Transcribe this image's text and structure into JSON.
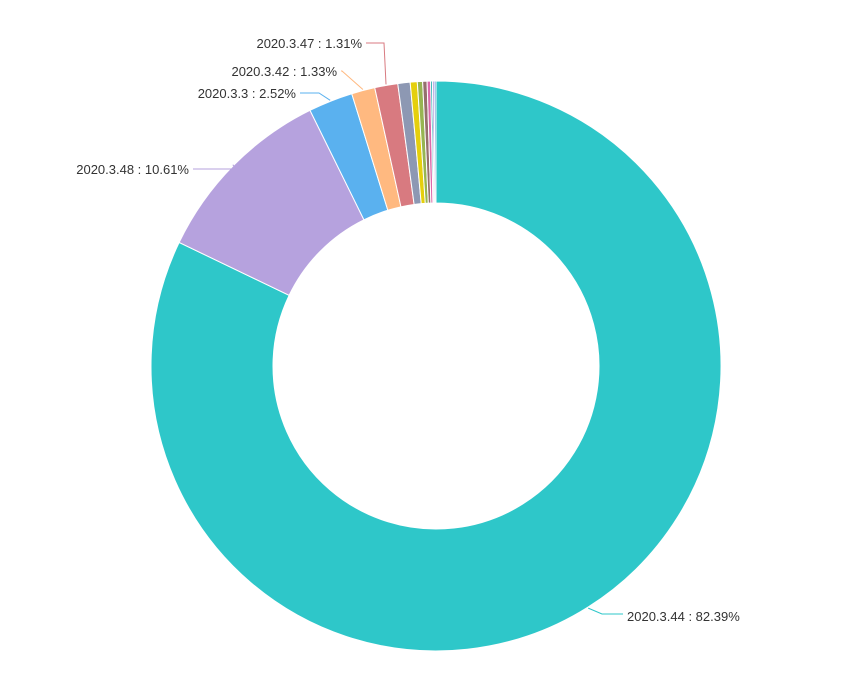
{
  "chart_data": {
    "type": "pie",
    "variant": "donut",
    "title": "",
    "legend": "none",
    "label_style": "outside-with-leader-lines",
    "slices": [
      {
        "name": "2020.3.44",
        "percent": 82.39,
        "label": "2020.3.44 : 82.39%",
        "color": "#2ec7c9"
      },
      {
        "name": "2020.3.48",
        "percent": 10.61,
        "label": "2020.3.48 : 10.61%",
        "color": "#b6a2de"
      },
      {
        "name": "2020.3.3",
        "percent": 2.52,
        "label": "2020.3.3 : 2.52%",
        "color": "#5ab1ef"
      },
      {
        "name": "2020.3.42",
        "percent": 1.33,
        "label": "2020.3.42 : 1.33%",
        "color": "#ffb980"
      },
      {
        "name": "2020.3.47",
        "percent": 1.31,
        "label": "2020.3.47 : 1.31%",
        "color": "#d87a80"
      },
      {
        "name": "",
        "percent": 0.7,
        "label": "",
        "color": "#8d98b3"
      },
      {
        "name": "",
        "percent": 0.4,
        "label": "",
        "color": "#e5cf0d"
      },
      {
        "name": "",
        "percent": 0.3,
        "label": "",
        "color": "#97b552"
      },
      {
        "name": "",
        "percent": 0.25,
        "label": "",
        "color": "#95706d"
      },
      {
        "name": "",
        "percent": 0.2,
        "label": "",
        "color": "#dc69aa"
      },
      {
        "name": "",
        "percent": 0.1,
        "label": "",
        "color": "#07a2a4"
      },
      {
        "name": "",
        "percent": 0.1,
        "label": "",
        "color": "#9a7fd1"
      },
      {
        "name": "",
        "percent": 0.1,
        "label": "",
        "color": "#588dd5"
      }
    ]
  }
}
